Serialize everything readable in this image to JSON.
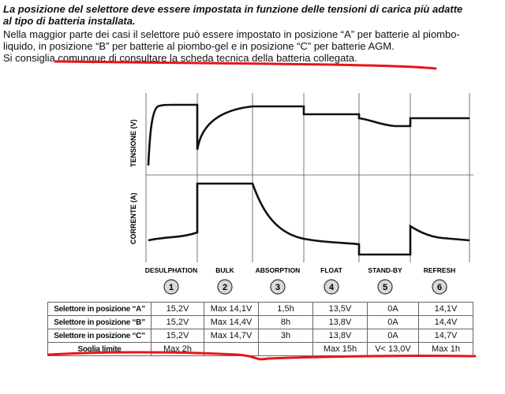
{
  "intro": {
    "lead_line1": "La posizione del selettore deve essere impostata in funzione delle tensioni di carica più adatte",
    "lead_line2": "al tipo di batteria installata.",
    "body_line1": "Nella maggior parte dei casi il selettore può essere impostato in posizione “A” per batterie al piombo-",
    "body_line2": "liquido, in posizione “B” per batterie al piombo-gel e in posizione “C” per batterie AGM.",
    "body_line3": "Si consiglia comunque di consultare la scheda tecnica della batteria collegata."
  },
  "diagram": {
    "voltage_label": "TENSIONE (V)",
    "current_label": "CORRENTE (A)",
    "phases": [
      {
        "name": "DESULPHATION",
        "number": "1"
      },
      {
        "name": "BULK",
        "number": "2"
      },
      {
        "name": "ABSORPTION",
        "number": "3"
      },
      {
        "name": "FLOAT",
        "number": "4"
      },
      {
        "name": "STAND-BY",
        "number": "5"
      },
      {
        "name": "REFRESH",
        "number": "6"
      }
    ]
  },
  "table": {
    "rows": [
      {
        "label": "Selettore in posizione “A”",
        "cells": [
          "15,2V",
          "Max 14,1V",
          "1,5h",
          "13,5V",
          "0A",
          "14,1V"
        ]
      },
      {
        "label": "Selettore in posizione “B”",
        "cells": [
          "15,2V",
          "Max 14,4V",
          "8h",
          "13,8V",
          "0A",
          "14,4V"
        ]
      },
      {
        "label": "Selettore in posizione “C”",
        "cells": [
          "15,2V",
          "Max 14,7V",
          "3h",
          "13,8V",
          "0A",
          "14,7V"
        ]
      },
      {
        "label": "Soglia limite",
        "cells": [
          "Max 2h",
          "",
          "",
          "Max 15h",
          "V< 13,0V",
          "Max 1h"
        ]
      }
    ]
  },
  "colors": {
    "annotation": "#e8141c",
    "curve": "#111111",
    "grid": "#555555"
  }
}
